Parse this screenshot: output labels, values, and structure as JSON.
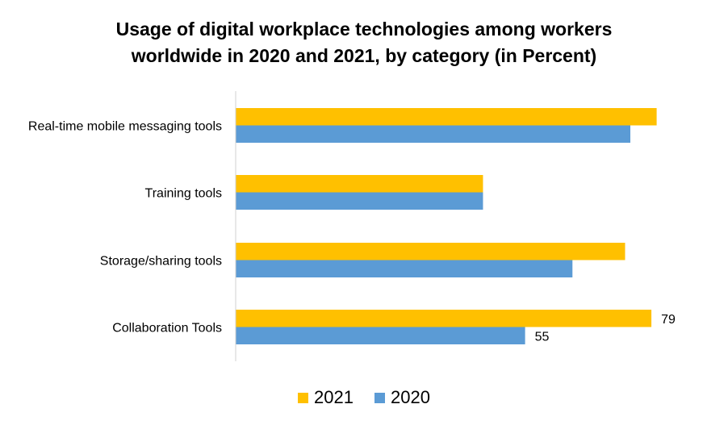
{
  "chart_data": {
    "type": "bar",
    "orientation": "horizontal",
    "title": "Usage of digital workplace technologies among workers worldwide in 2020 and 2021, by category (in Percent)",
    "title_lines": [
      "Usage of digital workplace technologies among workers",
      "worldwide in 2020 and 2021, by category (in Percent)"
    ],
    "categories": [
      "Real-time mobile messaging tools",
      "Training tools",
      "Storage/sharing tools",
      "Collaboration Tools"
    ],
    "series": [
      {
        "name": "2021",
        "color": "#FFC000",
        "values": [
          80,
          47,
          74,
          79
        ]
      },
      {
        "name": "2020",
        "color": "#5B9BD5",
        "values": [
          75,
          47,
          64,
          55
        ]
      }
    ],
    "data_labels": [
      {
        "series": "2021",
        "category": "Collaboration Tools",
        "text": "79"
      },
      {
        "series": "2020",
        "category": "Collaboration Tools",
        "text": "55"
      }
    ],
    "xlabel": "",
    "ylabel": "",
    "xlim": [
      0,
      93
    ],
    "grid": false,
    "legend": "bottom-center"
  }
}
